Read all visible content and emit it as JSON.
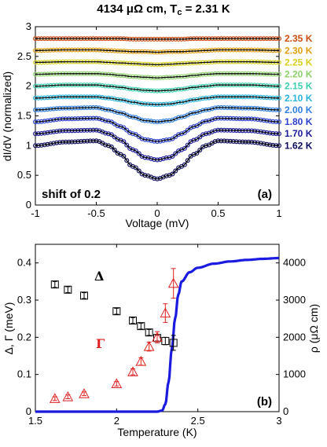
{
  "title": "4134 μΩ cm, T",
  "title_sub": "c",
  "title_tail": " = 2.31 K",
  "chart_data": [
    {
      "type": "line",
      "panel_label": "(a)",
      "xlabel": "Voltage (mV)",
      "ylabel": "dI/dV (normalized)",
      "xlim": [
        -1,
        1
      ],
      "ylim": [
        0,
        3
      ],
      "xticks": [
        "-1",
        "-0.5",
        "0",
        "0.5",
        "1"
      ],
      "yticks": [
        "0",
        "0.5",
        "1",
        "1.5",
        "2",
        "2.5",
        "3"
      ],
      "annotation": "shift of 0.2",
      "x": [
        -1,
        -0.75,
        -0.5,
        -0.4,
        -0.3,
        -0.2,
        -0.1,
        0,
        0.1,
        0.2,
        0.3,
        0.4,
        0.5,
        0.75,
        1
      ],
      "series": [
        {
          "name": "1.62 K",
          "color": "#0b0b5e",
          "values": [
            1.0,
            1.06,
            1.08,
            1.0,
            0.85,
            0.65,
            0.5,
            0.44,
            0.5,
            0.65,
            0.85,
            1.0,
            1.08,
            1.06,
            1.0
          ]
        },
        {
          "name": "1.70 K",
          "color": "#1a1a9c",
          "values": [
            1.2,
            1.25,
            1.26,
            1.2,
            1.09,
            0.93,
            0.8,
            0.76,
            0.8,
            0.93,
            1.09,
            1.2,
            1.26,
            1.25,
            1.2
          ]
        },
        {
          "name": "1.80 K",
          "color": "#2a3fd0",
          "values": [
            1.4,
            1.45,
            1.46,
            1.41,
            1.32,
            1.2,
            1.1,
            1.07,
            1.1,
            1.2,
            1.32,
            1.41,
            1.46,
            1.45,
            1.4
          ]
        },
        {
          "name": "2.00 K",
          "color": "#2f7fe0",
          "values": [
            1.6,
            1.63,
            1.64,
            1.6,
            1.55,
            1.48,
            1.42,
            1.4,
            1.42,
            1.48,
            1.55,
            1.6,
            1.64,
            1.63,
            1.6
          ]
        },
        {
          "name": "2.10 K",
          "color": "#28b4dd",
          "values": [
            1.8,
            1.82,
            1.82,
            1.8,
            1.77,
            1.73,
            1.7,
            1.69,
            1.7,
            1.73,
            1.77,
            1.8,
            1.82,
            1.82,
            1.8
          ]
        },
        {
          "name": "2.15 K",
          "color": "#3dcfb0",
          "values": [
            2.0,
            2.02,
            2.02,
            2.0,
            1.98,
            1.95,
            1.93,
            1.92,
            1.93,
            1.95,
            1.98,
            2.0,
            2.02,
            2.02,
            2.0
          ]
        },
        {
          "name": "2.20 K",
          "color": "#8ed16a",
          "values": [
            2.2,
            2.21,
            2.21,
            2.2,
            2.18,
            2.16,
            2.15,
            2.14,
            2.15,
            2.16,
            2.18,
            2.2,
            2.21,
            2.21,
            2.2
          ]
        },
        {
          "name": "2.25 K",
          "color": "#d8d020",
          "values": [
            2.4,
            2.41,
            2.41,
            2.4,
            2.39,
            2.38,
            2.37,
            2.36,
            2.37,
            2.38,
            2.39,
            2.4,
            2.41,
            2.41,
            2.4
          ]
        },
        {
          "name": "2.30 K",
          "color": "#e0a015",
          "values": [
            2.6,
            2.61,
            2.61,
            2.6,
            2.59,
            2.58,
            2.58,
            2.57,
            2.58,
            2.58,
            2.59,
            2.6,
            2.61,
            2.61,
            2.6
          ]
        },
        {
          "name": "2.35 K",
          "color": "#cc4d12",
          "values": [
            2.8,
            2.8,
            2.8,
            2.8,
            2.8,
            2.79,
            2.79,
            2.79,
            2.79,
            2.79,
            2.8,
            2.8,
            2.8,
            2.8,
            2.8
          ]
        }
      ]
    },
    {
      "type": "scatter",
      "panel_label": "(b)",
      "xlabel": "Temperature (K)",
      "ylabel": "Δ, Γ (meV)",
      "ylabel_right": "ρ (μΩ cm)",
      "xlim": [
        1.5,
        3
      ],
      "ylim": [
        0,
        0.45
      ],
      "ylim_right": [
        0,
        4500
      ],
      "xticks": [
        "1.5",
        "2",
        "2.5",
        "3"
      ],
      "yticks": [
        "0",
        "0.1",
        "0.2",
        "0.3",
        "0.4"
      ],
      "yticks_right": [
        "0",
        "1000",
        "2000",
        "3000",
        "4000"
      ],
      "delta": {
        "label": "Δ",
        "color": "#000000",
        "x": [
          1.62,
          1.7,
          1.8,
          2.0,
          2.1,
          2.15,
          2.2,
          2.25,
          2.3,
          2.35
        ],
        "y": [
          0.342,
          0.328,
          0.312,
          0.27,
          0.245,
          0.23,
          0.213,
          0.198,
          0.19,
          0.185
        ],
        "err": [
          0.008,
          0.008,
          0.008,
          0.008,
          0.008,
          0.008,
          0.008,
          0.008,
          0.01,
          0.02
        ]
      },
      "gamma": {
        "label": "Γ",
        "color": "#e02020",
        "x": [
          1.62,
          1.7,
          1.8,
          2.0,
          2.1,
          2.15,
          2.2,
          2.25,
          2.3,
          2.35
        ],
        "y": [
          0.035,
          0.04,
          0.048,
          0.075,
          0.107,
          0.135,
          0.175,
          0.2,
          0.265,
          0.345
        ],
        "err": [
          0.005,
          0.005,
          0.005,
          0.006,
          0.008,
          0.01,
          0.012,
          0.015,
          0.025,
          0.04
        ]
      },
      "rho": {
        "color": "#1a1ae0",
        "x": [
          1.5,
          2.25,
          2.28,
          2.3,
          2.32,
          2.34,
          2.36,
          2.38,
          2.4,
          2.45,
          2.5,
          2.6,
          2.7,
          2.8,
          2.9,
          3.0
        ],
        "y": [
          0,
          0,
          30,
          200,
          800,
          1700,
          2500,
          3150,
          3500,
          3750,
          3870,
          3980,
          4040,
          4080,
          4110,
          4130
        ]
      }
    }
  ]
}
